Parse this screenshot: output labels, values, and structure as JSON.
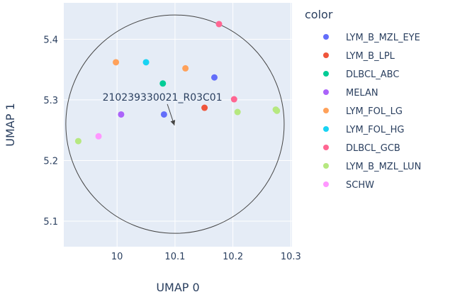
{
  "chart_data": {
    "type": "scatter",
    "xlabel": "UMAP 0",
    "ylabel": "UMAP 1",
    "xlim": [
      9.908,
      10.302
    ],
    "ylim": [
      5.058,
      5.46
    ],
    "x_ticks": [
      10,
      10.1,
      10.2,
      10.3
    ],
    "x_tick_labels": [
      "10",
      "10.1",
      "10.2",
      "10.3"
    ],
    "y_ticks": [
      5.1,
      5.2,
      5.3,
      5.4
    ],
    "y_tick_labels": [
      "5.1",
      "5.2",
      "5.3",
      "5.4"
    ],
    "grid": true,
    "legend": {
      "title": "color",
      "placement": "right"
    },
    "series": [
      {
        "name": "LYM_B_MZL_EYE",
        "color": "#636efa",
        "points": [
          [
            10.168,
            5.337
          ],
          [
            10.081,
            5.276
          ]
        ]
      },
      {
        "name": "LYM_B_LPL",
        "color": "#ef553b",
        "points": [
          [
            10.151,
            5.287
          ]
        ]
      },
      {
        "name": "DLBCL_ABC",
        "color": "#00cc96",
        "points": [
          [
            10.079,
            5.327
          ]
        ]
      },
      {
        "name": "MELAN",
        "color": "#ab63fa",
        "points": [
          [
            10.007,
            5.276
          ]
        ]
      },
      {
        "name": "LYM_FOL_LG",
        "color": "#ffa15a",
        "points": [
          [
            9.998,
            5.362
          ],
          [
            10.118,
            5.352
          ]
        ]
      },
      {
        "name": "LYM_FOL_HG",
        "color": "#19d3f3",
        "points": [
          [
            10.05,
            5.362
          ]
        ]
      },
      {
        "name": "DLBCL_GCB",
        "color": "#ff6692",
        "points": [
          [
            10.176,
            5.425
          ],
          [
            10.202,
            5.301
          ]
        ]
      },
      {
        "name": "LYM_B_MZL_LUN",
        "color": "#b6e880",
        "points": [
          [
            9.933,
            5.232
          ],
          [
            10.208,
            5.28
          ],
          [
            10.274,
            5.284
          ],
          [
            10.276,
            5.282
          ]
        ]
      },
      {
        "name": "SCHW",
        "color": "#ff97ff",
        "points": [
          [
            9.968,
            5.24
          ]
        ]
      }
    ],
    "annotation": {
      "text": "210239330021_R03C01",
      "x": 10.099,
      "y": 5.258
    },
    "circle": {
      "center": [
        10.1,
        5.26
      ],
      "radius_y": 0.18
    }
  }
}
